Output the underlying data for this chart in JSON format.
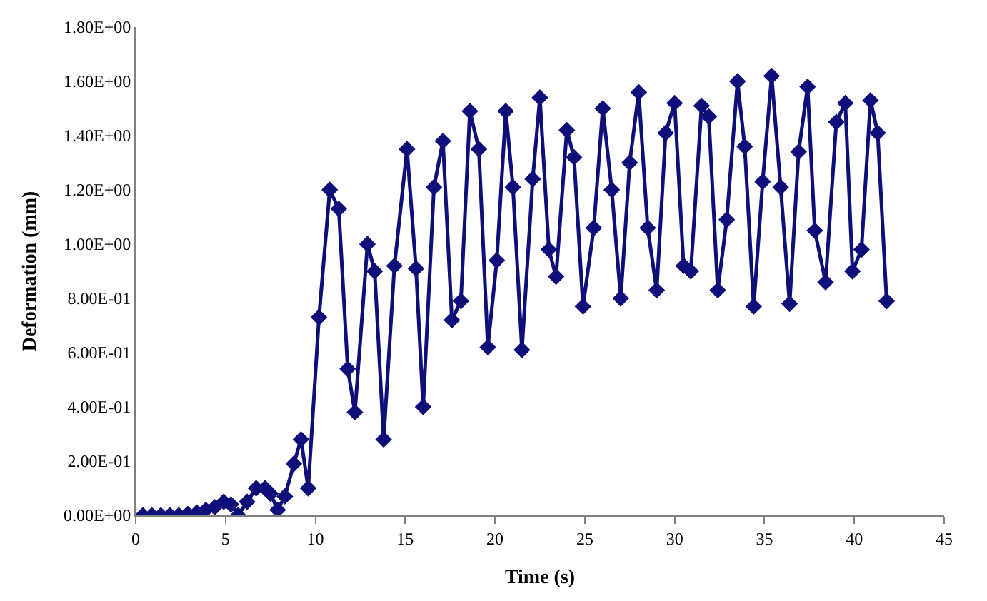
{
  "chart_data": {
    "type": "line",
    "xlabel": "Time (s)",
    "ylabel": "Deformation (mm)",
    "marker": "diamond",
    "line_style": "solid",
    "grid": false,
    "xlim": [
      0,
      45
    ],
    "xticks": [
      0,
      5,
      10,
      15,
      20,
      25,
      30,
      35,
      40,
      45
    ],
    "ylim": [
      0,
      1.8
    ],
    "yticks": [
      {
        "value": 0,
        "label": "0.00E+00"
      },
      {
        "value": 0.2,
        "label": "2.00E-01"
      },
      {
        "value": 0.4,
        "label": "4.00E-01"
      },
      {
        "value": 0.6,
        "label": "6.00E-01"
      },
      {
        "value": 0.8,
        "label": "8.00E-01"
      },
      {
        "value": 1.0,
        "label": "1.00E+00"
      },
      {
        "value": 1.2,
        "label": "1.20E+00"
      },
      {
        "value": 1.4,
        "label": "1.40E+00"
      },
      {
        "value": 1.6,
        "label": "1.60E+00"
      },
      {
        "value": 1.8,
        "label": "1.80E+00"
      }
    ],
    "x": [
      0.4,
      0.9,
      1.4,
      1.9,
      2.4,
      2.9,
      3.4,
      3.9,
      4.4,
      4.9,
      5.3,
      5.7,
      6.2,
      6.7,
      7.2,
      7.5,
      7.9,
      8.3,
      8.8,
      9.2,
      9.6,
      10.2,
      10.8,
      11.3,
      11.8,
      12.2,
      12.9,
      13.3,
      13.8,
      14.4,
      15.1,
      15.6,
      16.0,
      16.6,
      17.1,
      17.6,
      18.1,
      18.6,
      19.1,
      19.6,
      20.1,
      20.6,
      21.0,
      21.5,
      22.1,
      22.5,
      23.0,
      23.4,
      24.0,
      24.4,
      24.9,
      25.5,
      26.0,
      26.5,
      27.0,
      27.5,
      28.0,
      28.5,
      29.0,
      29.5,
      30.0,
      30.5,
      30.9,
      31.5,
      31.9,
      32.4,
      32.9,
      33.5,
      33.9,
      34.4,
      34.9,
      35.4,
      35.9,
      36.4,
      36.9,
      37.4,
      37.8,
      38.4,
      39.0,
      39.5,
      39.9,
      40.4,
      40.9,
      41.3,
      41.8
    ],
    "series": [
      {
        "color": "#0f0f7a",
        "values": [
          0,
          0,
          0,
          0,
          0,
          0.005,
          0.01,
          0.02,
          0.03,
          0.05,
          0.04,
          0.0,
          0.05,
          0.1,
          0.1,
          0.08,
          0.02,
          0.07,
          0.19,
          0.28,
          0.1,
          0.73,
          1.2,
          1.13,
          0.54,
          0.38,
          1.0,
          0.9,
          0.28,
          0.92,
          1.35,
          0.91,
          0.4,
          1.21,
          1.38,
          0.72,
          0.79,
          1.49,
          1.35,
          0.62,
          0.94,
          1.49,
          1.21,
          0.61,
          1.24,
          1.54,
          0.98,
          0.88,
          1.42,
          1.32,
          0.77,
          1.06,
          1.5,
          1.2,
          0.8,
          1.3,
          1.56,
          1.06,
          0.83,
          1.41,
          1.52,
          0.92,
          0.9,
          1.51,
          1.47,
          0.83,
          1.09,
          1.6,
          1.36,
          0.77,
          1.23,
          1.62,
          1.21,
          0.78,
          1.34,
          1.58,
          1.05,
          0.86,
          1.45,
          1.52,
          0.9,
          0.98,
          1.53,
          1.41,
          0.79
        ]
      }
    ]
  }
}
